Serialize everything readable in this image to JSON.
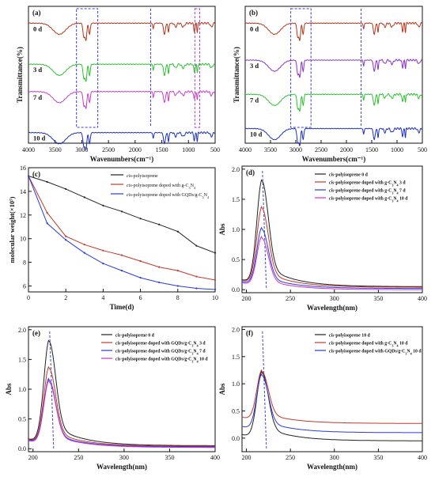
{
  "chart_data": [
    {
      "panel": "(a)",
      "type": "line",
      "xlabel": "Wavenumbers(cm⁻¹)",
      "ylabel": "Transmittance(%)",
      "xlim": [
        4000,
        500
      ],
      "xticks": [
        4000,
        3500,
        3000,
        2500,
        2000,
        1500,
        1000,
        500
      ],
      "series": [
        {
          "name": "0 d",
          "color": "#b5341a",
          "offset": 0.9
        },
        {
          "name": "3 d",
          "color": "#2ec02e",
          "offset": 0.6
        },
        {
          "name": "7 d",
          "color": "#c83cc8",
          "offset": 0.4
        },
        {
          "name": "10 d",
          "color": "#1a2fbf",
          "offset": 0.1
        }
      ],
      "highlights": [
        {
          "type": "box",
          "x": [
            3100,
            2700
          ],
          "color": "#3c3cd0"
        },
        {
          "type": "line",
          "x": 1710,
          "color": "#3c3cd0"
        },
        {
          "type": "box",
          "x": [
            880,
            790
          ],
          "color": "#a03cd0"
        }
      ]
    },
    {
      "panel": "(b)",
      "type": "line",
      "xlabel": "Wavenumbers(cm⁻¹)",
      "ylabel": "Transmittance(%)",
      "xlim": [
        4000,
        500
      ],
      "xticks": [
        4000,
        3500,
        3000,
        2500,
        2000,
        1500,
        1000,
        500
      ],
      "series": [
        {
          "name": "0 d",
          "color": "#b5341a",
          "offset": 0.9
        },
        {
          "name": "3 d",
          "color": "#8a2fc8",
          "offset": 0.63
        },
        {
          "name": "7 d",
          "color": "#2ec02e",
          "offset": 0.38
        },
        {
          "name": "10 d",
          "color": "#1a2fbf",
          "offset": 0.13
        }
      ],
      "highlights": [
        {
          "type": "box",
          "x": [
            3100,
            2700
          ],
          "color": "#3c3cd0"
        },
        {
          "type": "line",
          "x": 1710,
          "color": "#3c3cd0"
        }
      ]
    },
    {
      "panel": "(c)",
      "type": "line",
      "xlabel": "Time(d)",
      "ylabel": "molecular weight(×10⁵)",
      "xlim": [
        0,
        10
      ],
      "ylim": [
        5.5,
        16
      ],
      "xticks": [
        0,
        2,
        4,
        6,
        8,
        10
      ],
      "yticks": [
        6,
        8,
        10,
        12,
        14,
        16
      ],
      "legend_position": "top-right",
      "series": [
        {
          "name": "cis-polyisoprene",
          "color": "#222222",
          "x": [
            0,
            1,
            2,
            3,
            4,
            5,
            6,
            7,
            8,
            9,
            10
          ],
          "values": [
            15.3,
            14.8,
            14.2,
            13.5,
            12.8,
            12.3,
            11.7,
            11.2,
            10.6,
            9.4,
            8.8
          ]
        },
        {
          "name": "cis-polyisoprene doped with g-C3N4",
          "color": "#c0392b",
          "x": [
            0,
            1,
            2,
            3,
            4,
            5,
            6,
            7,
            8,
            9,
            10
          ],
          "values": [
            15.3,
            12.2,
            10.2,
            9.5,
            9.0,
            8.6,
            8.1,
            7.6,
            7.3,
            6.8,
            6.5
          ]
        },
        {
          "name": "cis-polyisoprene doped with GQDs/g-C3N4",
          "color": "#2a3bd9",
          "x": [
            0,
            1,
            2,
            3,
            4,
            5,
            6,
            7,
            8,
            9,
            10
          ],
          "values": [
            15.3,
            11.3,
            9.9,
            8.8,
            7.9,
            7.3,
            6.7,
            6.3,
            6.0,
            5.8,
            5.7
          ]
        }
      ]
    },
    {
      "panel": "(d)",
      "type": "line",
      "xlabel": "Wavelength(nm)",
      "ylabel": "Abs",
      "xlim": [
        195,
        400
      ],
      "ylim": [
        -0.05,
        2.05
      ],
      "xticks": [
        200,
        250,
        300,
        350,
        400
      ],
      "yticks": [
        0.0,
        0.5,
        1.0,
        1.5,
        2.0
      ],
      "dashed_x": 220,
      "legend_position": "top-right",
      "series": [
        {
          "name": "cis-polyisoprene 0 d",
          "color": "#222222",
          "peak": 1.8,
          "tail": 0.05
        },
        {
          "name": "cis-polyisoprene doped with g-C3N4 3 d",
          "color": "#c0392b",
          "peak": 1.35,
          "tail": 0.04
        },
        {
          "name": "cis-polyisoprene doped with g-C3N4 7 d",
          "color": "#2a3bd9",
          "peak": 1.0,
          "tail": 0.02
        },
        {
          "name": "cis-polyisoprene doped with g-C3N4 10 d",
          "color": "#cc33cc",
          "peak": 0.85,
          "tail": 0.0
        }
      ]
    },
    {
      "panel": "(e)",
      "type": "line",
      "xlabel": "Wavelength(nm)",
      "ylabel": "Abs",
      "xlim": [
        195,
        400
      ],
      "ylim": [
        -0.05,
        2.05
      ],
      "xticks": [
        200,
        250,
        300,
        350,
        400
      ],
      "yticks": [
        0.0,
        0.5,
        1.0,
        1.5,
        2.0
      ],
      "dashed_x": 220,
      "legend_position": "top-right",
      "series": [
        {
          "name": "cis-polyisoprene 0 d",
          "color": "#222222",
          "peak": 1.8,
          "tail": 0.05
        },
        {
          "name": "cis-polyisoprene doped with GQDs/g-C3N4 3 d",
          "color": "#c0392b",
          "peak": 1.35,
          "tail": 0.04
        },
        {
          "name": "cis-polyisoprene doped with GQDs/g-C3N4 7 d",
          "color": "#2a3bd9",
          "peak": 1.15,
          "tail": 0.03
        },
        {
          "name": "cis-polyisoprene doped with GQDs/g-C3N4 10 d",
          "color": "#cc33cc",
          "peak": 1.12,
          "tail": 0.02
        }
      ]
    },
    {
      "panel": "(f)",
      "type": "line",
      "xlabel": "Wavelength(nm)",
      "ylabel": "Abs",
      "xlim": [
        195,
        400
      ],
      "ylim": [
        -0.25,
        2.05
      ],
      "xticks": [
        200,
        250,
        300,
        350,
        400
      ],
      "yticks": [
        0.0,
        0.5,
        1.0,
        1.5,
        2.0
      ],
      "dashed_x": 220,
      "legend_position": "top-right",
      "series": [
        {
          "name": "cis-polyisoprene 10 d",
          "color": "#222222",
          "peak": 1.2,
          "tail": -0.05
        },
        {
          "name": "cis-polyisoprene doped with g-C3N4 10 d",
          "color": "#c0392b",
          "peak": 1.22,
          "tail": 0.27
        },
        {
          "name": "cis-polyisoprene doped with GQDs/g-C3N4 10 d",
          "color": "#2a3bd9",
          "peak": 1.15,
          "tail": 0.1
        }
      ]
    }
  ]
}
